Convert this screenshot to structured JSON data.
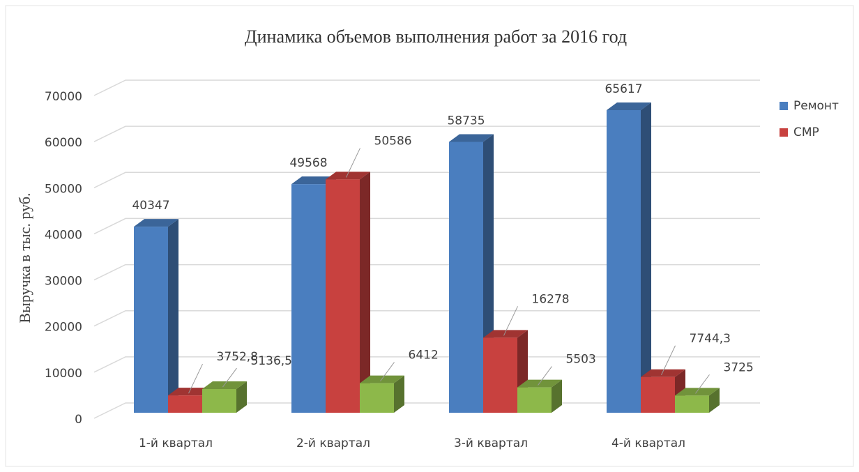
{
  "chart_data": {
    "type": "bar3d",
    "title": "Динамика объемов выполнения работ за 2016 год",
    "y_label": "Выручка в тыс. руб.",
    "categories": [
      "1-й квартал",
      "2-й квартал",
      "3-й квартал",
      "4-й квартал"
    ],
    "series": [
      {
        "name": "Ремонт",
        "color": "#4a7ebf",
        "values": [
          40347,
          49568,
          58735,
          65617
        ]
      },
      {
        "name": "СМР",
        "color": "#c8413f",
        "values": [
          3752.8,
          50586,
          16278,
          7744.3
        ],
        "value_labels": [
          "3752,8",
          "50586",
          "16278",
          "7744,3"
        ]
      },
      {
        "color": "#8db84a",
        "values": [
          5136.5,
          6412,
          5503,
          3725
        ],
        "value_labels": [
          "5136,5",
          "6412",
          "5503",
          "3725"
        ]
      }
    ],
    "ylim": [
      0,
      70000
    ],
    "yticks": [
      0,
      10000,
      20000,
      30000,
      40000,
      50000,
      60000,
      70000
    ],
    "grid": true,
    "legend": "right"
  }
}
